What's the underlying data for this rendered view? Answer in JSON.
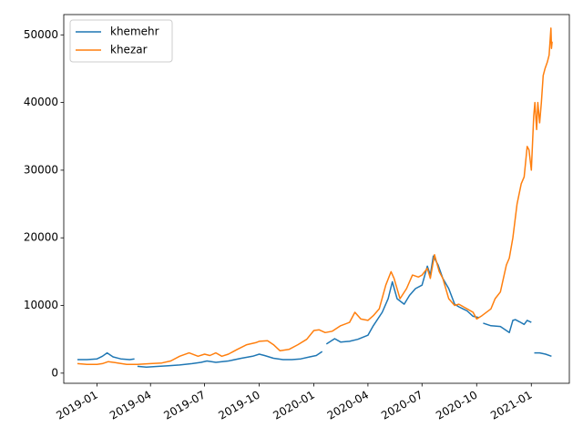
{
  "chart_data": {
    "type": "line",
    "title": "",
    "xlabel": "",
    "ylabel": "",
    "x_tick_labels": [
      "2019-01",
      "2019-04",
      "2019-07",
      "2019-10",
      "2020-01",
      "2020-04",
      "2020-07",
      "2020-10",
      "2021-01"
    ],
    "y_tick_labels": [
      "0",
      "10000",
      "20000",
      "30000",
      "40000",
      "50000"
    ],
    "ylim": [
      -1500,
      53000
    ],
    "xlim": [
      "2018-11-06",
      "2021-03-06"
    ],
    "grid": false,
    "legend_position": "top-left",
    "series": [
      {
        "name": "khemehr",
        "color": "#1f77b4",
        "segments": [
          {
            "x": [
              "2018-11-29",
              "2018-12-15",
              "2019-01-01",
              "2019-01-10",
              "2019-01-18",
              "2019-01-28",
              "2019-02-10",
              "2019-02-25",
              "2019-03-05"
            ],
            "y": [
              2000,
              2000,
              2100,
              2500,
              3000,
              2400,
              2100,
              2000,
              2100
            ]
          },
          {
            "x": [
              "2019-03-10",
              "2019-03-25",
              "2019-04-15",
              "2019-05-01",
              "2019-05-20",
              "2019-06-10",
              "2019-06-25",
              "2019-07-05",
              "2019-07-20",
              "2019-08-10",
              "2019-09-01",
              "2019-09-20",
              "2019-10-01",
              "2019-10-10",
              "2019-10-25",
              "2019-11-10",
              "2019-11-25",
              "2019-12-10",
              "2019-12-25",
              "2020-01-05",
              "2020-01-15"
            ],
            "y": [
              1000,
              900,
              1000,
              1100,
              1200,
              1400,
              1600,
              1800,
              1600,
              1800,
              2200,
              2500,
              2800,
              2600,
              2200,
              2000,
              2000,
              2100,
              2400,
              2600,
              3200
            ]
          },
          {
            "x": [
              "2020-01-22",
              "2020-02-05",
              "2020-02-15",
              "2020-03-01",
              "2020-03-15",
              "2020-04-01",
              "2020-04-10",
              "2020-04-25",
              "2020-05-05",
              "2020-05-12",
              "2020-05-20",
              "2020-06-01",
              "2020-06-10",
              "2020-06-20",
              "2020-07-01",
              "2020-07-10",
              "2020-07-15",
              "2020-07-20",
              "2020-07-28",
              "2020-08-05",
              "2020-08-15",
              "2020-08-25",
              "2020-09-01",
              "2020-09-15",
              "2020-09-25",
              "2020-10-05"
            ],
            "y": [
              4300,
              5100,
              4600,
              4700,
              5000,
              5600,
              7000,
              9000,
              11000,
              13500,
              11000,
              10200,
              11500,
              12500,
              13000,
              15800,
              14500,
              17300,
              16000,
              14000,
              12500,
              10200,
              9800,
              9200,
              8400,
              8200
            ]
          },
          {
            "x": [
              "2020-10-12",
              "2020-10-25",
              "2020-11-10",
              "2020-11-25",
              "2020-12-01",
              "2020-12-05",
              "2020-12-12",
              "2020-12-20",
              "2020-12-25",
              "2021-01-01"
            ],
            "y": [
              7400,
              7000,
              6900,
              6000,
              7800,
              7900,
              7600,
              7200,
              7800,
              7500
            ]
          },
          {
            "x": [
              "2021-01-06",
              "2021-01-15",
              "2021-01-25",
              "2021-02-04"
            ],
            "y": [
              3000,
              3000,
              2800,
              2500
            ]
          }
        ]
      },
      {
        "name": "khezar",
        "color": "#ff7f0e",
        "segments": [
          {
            "x": [
              "2018-11-29",
              "2018-12-15",
              "2019-01-01",
              "2019-01-10",
              "2019-01-20",
              "2019-02-05",
              "2019-02-20",
              "2019-03-10",
              "2019-04-01",
              "2019-04-20",
              "2019-05-05",
              "2019-05-20",
              "2019-06-05",
              "2019-06-20",
              "2019-07-01",
              "2019-07-10",
              "2019-07-20",
              "2019-07-30",
              "2019-08-10",
              "2019-08-25",
              "2019-09-10",
              "2019-09-25",
              "2019-10-01",
              "2019-10-15",
              "2019-10-25",
              "2019-11-05",
              "2019-11-20",
              "2019-12-05",
              "2019-12-20",
              "2020-01-01",
              "2020-01-10",
              "2020-01-20",
              "2020-02-01",
              "2020-02-15",
              "2020-03-01",
              "2020-03-10",
              "2020-03-20",
              "2020-04-01",
              "2020-04-10",
              "2020-04-20",
              "2020-05-01",
              "2020-05-10",
              "2020-05-15",
              "2020-05-25",
              "2020-06-05",
              "2020-06-15",
              "2020-06-25",
              "2020-07-01",
              "2020-07-10",
              "2020-07-15",
              "2020-07-22",
              "2020-07-30",
              "2020-08-05",
              "2020-08-15",
              "2020-08-25",
              "2020-09-01",
              "2020-09-15",
              "2020-09-25",
              "2020-10-01",
              "2020-10-10",
              "2020-10-25",
              "2020-11-01",
              "2020-11-10",
              "2020-11-20",
              "2020-11-25",
              "2020-12-01",
              "2020-12-08",
              "2020-12-15",
              "2020-12-20",
              "2020-12-25",
              "2020-12-28",
              "2021-01-01",
              "2021-01-03",
              "2021-01-05",
              "2021-01-07",
              "2021-01-10",
              "2021-01-12",
              "2021-01-15",
              "2021-01-18",
              "2021-01-21",
              "2021-01-24",
              "2021-01-28",
              "2021-01-31",
              "2021-02-03",
              "2021-02-04",
              "2021-02-05"
            ],
            "y": [
              1400,
              1300,
              1300,
              1400,
              1700,
              1500,
              1300,
              1300,
              1400,
              1500,
              1800,
              2500,
              3000,
              2500,
              2800,
              2600,
              3000,
              2500,
              2800,
              3500,
              4200,
              4500,
              4700,
              4800,
              4200,
              3300,
              3500,
              4200,
              5000,
              6300,
              6400,
              6000,
              6200,
              7000,
              7500,
              9000,
              8000,
              7800,
              8500,
              9500,
              13000,
              15000,
              14000,
              11000,
              12500,
              14500,
              14200,
              14500,
              15500,
              14000,
              17500,
              15000,
              14000,
              11000,
              10000,
              10200,
              9500,
              9000,
              8000,
              8500,
              9500,
              11000,
              12000,
              16000,
              17000,
              20000,
              25000,
              28000,
              29000,
              33500,
              33000,
              30000,
              34000,
              38000,
              40000,
              36000,
              40000,
              37000,
              40000,
              44000,
              45000,
              46000,
              47000,
              51000,
              48000,
              49000
            ]
          }
        ]
      }
    ]
  }
}
